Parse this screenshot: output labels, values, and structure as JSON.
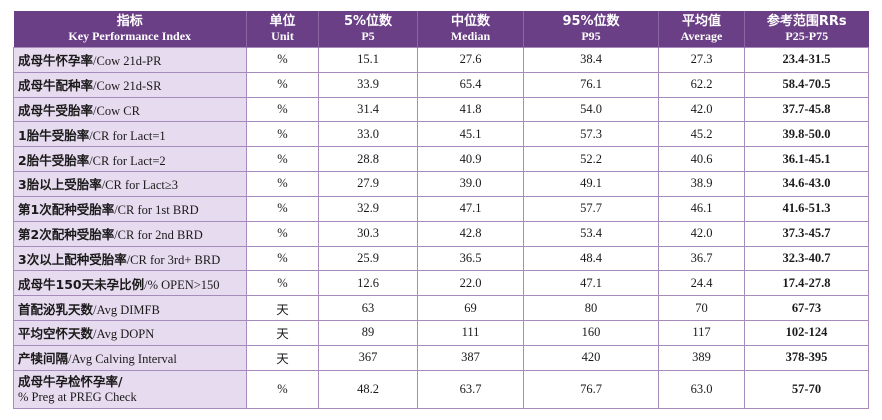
{
  "header": {
    "indicator_zh": "指标",
    "indicator_en": "Key Performance Index",
    "unit_zh": "单位",
    "unit_en": "Unit",
    "p5_zh": "5%位数",
    "p5_en": "P5",
    "median_zh": "中位数",
    "median_en": "Median",
    "p95_zh": "95%位数",
    "p95_en": "P95",
    "avg_zh": "平均值",
    "avg_en": "Average",
    "rr_zh": "参考范围RRs",
    "rr_en": "P25-P75"
  },
  "rows": [
    {
      "name_zh": "成母牛怀孕率",
      "name_en": "/Cow 21d-PR",
      "unit": "%",
      "p5": "15.1",
      "median": "27.6",
      "p95": "38.4",
      "avg": "27.3",
      "rr": "23.4-31.5"
    },
    {
      "name_zh": "成母牛配种率",
      "name_en": "/Cow 21d-SR",
      "unit": "%",
      "p5": "33.9",
      "median": "65.4",
      "p95": "76.1",
      "avg": "62.2",
      "rr": "58.4-70.5"
    },
    {
      "name_zh": "成母牛受胎率",
      "name_en": "/Cow CR",
      "unit": "%",
      "p5": "31.4",
      "median": "41.8",
      "p95": "54.0",
      "avg": "42.0",
      "rr": "37.7-45.8"
    },
    {
      "name_zh": "1胎牛受胎率",
      "name_en": "/CR for Lact=1",
      "unit": "%",
      "p5": "33.0",
      "median": "45.1",
      "p95": "57.3",
      "avg": "45.2",
      "rr": "39.8-50.0"
    },
    {
      "name_zh": "2胎牛受胎率",
      "name_en": "/CR for Lact=2",
      "unit": "%",
      "p5": "28.8",
      "median": "40.9",
      "p95": "52.2",
      "avg": "40.6",
      "rr": "36.1-45.1"
    },
    {
      "name_zh": "3胎以上受胎率",
      "name_en": "/CR for Lact≥3",
      "unit": "%",
      "p5": "27.9",
      "median": "39.0",
      "p95": "49.1",
      "avg": "38.9",
      "rr": "34.6-43.0"
    },
    {
      "name_zh": "第1次配种受胎率",
      "name_en": "/CR for 1st BRD",
      "unit": "%",
      "p5": "32.9",
      "median": "47.1",
      "p95": "57.7",
      "avg": "46.1",
      "rr": "41.6-51.3"
    },
    {
      "name_zh": "第2次配种受胎率",
      "name_en": "/CR for 2nd BRD",
      "unit": "%",
      "p5": "30.3",
      "median": "42.8",
      "p95": "53.4",
      "avg": "42.0",
      "rr": "37.3-45.7"
    },
    {
      "name_zh": "3次以上配种受胎率",
      "name_en": "/CR for 3rd+ BRD",
      "unit": "%",
      "p5": "25.9",
      "median": "36.5",
      "p95": "48.4",
      "avg": "36.7",
      "rr": "32.3-40.7"
    },
    {
      "name_zh": "成母牛150天未孕比例",
      "name_en": "/% OPEN>150",
      "unit": "%",
      "p5": "12.6",
      "median": "22.0",
      "p95": "47.1",
      "avg": "24.4",
      "rr": "17.4-27.8"
    },
    {
      "name_zh": "首配泌乳天数",
      "name_en": "/Avg DIMFB",
      "unit": "天",
      "p5": "63",
      "median": "69",
      "p95": "80",
      "avg": "70",
      "rr": "67-73"
    },
    {
      "name_zh": "平均空怀天数",
      "name_en": "/Avg DOPN",
      "unit": "天",
      "p5": "89",
      "median": "111",
      "p95": "160",
      "avg": "117",
      "rr": "102-124"
    },
    {
      "name_zh": "产犊间隔",
      "name_en": "/Avg Calving Interval",
      "unit": "天",
      "p5": "367",
      "median": "387",
      "p95": "420",
      "avg": "389",
      "rr": "378-395"
    }
  ],
  "last_row": {
    "name_zh": "成母牛孕检怀孕率/",
    "name_en": "% Preg at PREG Check",
    "unit": "%",
    "p5": "48.2",
    "median": "63.7",
    "p95": "76.7",
    "avg": "63.0",
    "rr": "57-70"
  }
}
